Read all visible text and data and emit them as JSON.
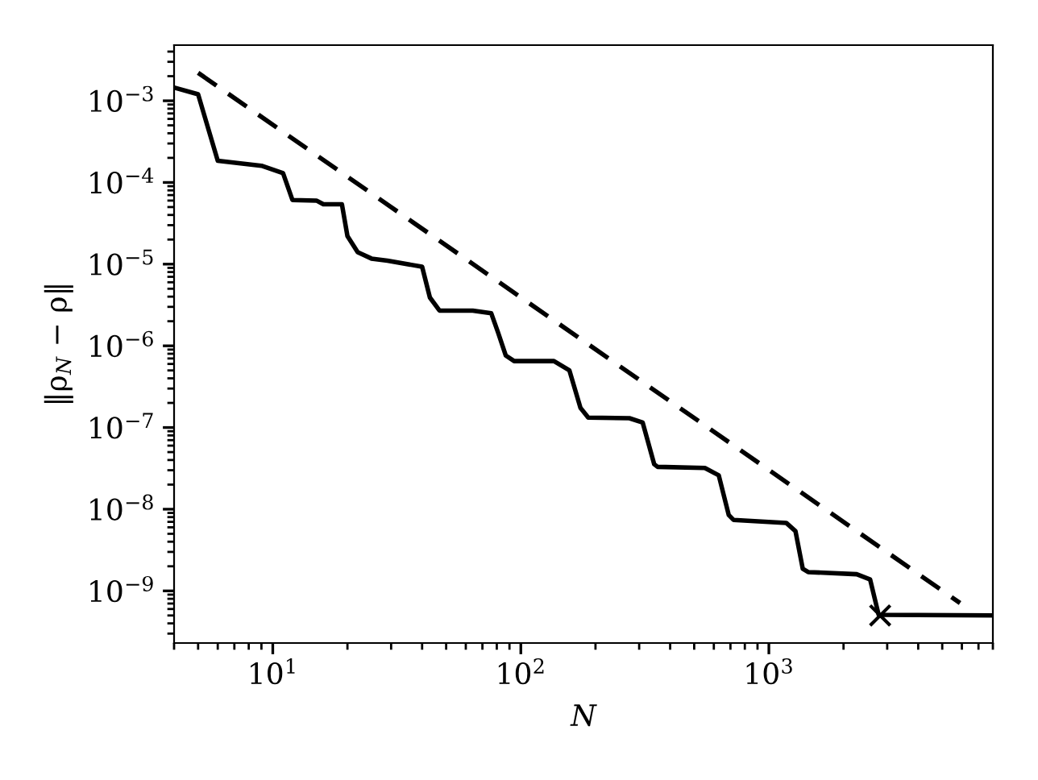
{
  "chart_data": {
    "type": "line",
    "xlabel": "N",
    "ylabel": "‖ρ$_{N}$ − ρ‖",
    "log": "xy",
    "grid": false,
    "legend": false,
    "xlim": [
      4,
      8000
    ],
    "ylim": [
      2.3e-10,
      0.0048
    ],
    "xticks": [
      {
        "value": 10,
        "label": "10$^{1}$"
      },
      {
        "value": 100,
        "label": "10$^{2}$"
      },
      {
        "value": 1000,
        "label": "10$^{3}$"
      }
    ],
    "yticks": [
      {
        "value": 1e-09,
        "label": "10$^{−9}$"
      },
      {
        "value": 1e-08,
        "label": "10$^{−8}$"
      },
      {
        "value": 1e-07,
        "label": "10$^{−7}$"
      },
      {
        "value": 1e-06,
        "label": "10$^{−6}$"
      },
      {
        "value": 1e-05,
        "label": "10$^{−5}$"
      },
      {
        "value": 0.0001,
        "label": "10$^{−4}$"
      },
      {
        "value": 0.001,
        "label": "10$^{−3}$"
      }
    ],
    "series": [
      {
        "color": "#000000",
        "line_style": "dashed",
        "marker": "none",
        "x": [
          5,
          5900
        ],
        "values": [
          0.0022,
          7.1e-10
        ]
      },
      {
        "color": "#000000",
        "line_style": "solid",
        "marker": "none",
        "x": [
          4,
          5,
          6,
          9,
          11,
          12,
          15,
          16,
          19,
          20,
          22,
          25,
          29,
          40,
          43,
          47,
          64,
          76,
          81,
          87,
          94,
          136,
          157,
          174,
          187,
          274,
          310,
          345,
          356,
          552,
          628,
          689,
          720,
          1175,
          1280,
          1370,
          1440,
          2260,
          2560,
          2770,
          8000
        ],
        "values": [
          0.00145,
          0.0012,
          0.000184,
          0.00016,
          0.00013,
          6.1e-05,
          6e-05,
          5.4e-05,
          5.4e-05,
          2.2e-05,
          1.4e-05,
          1.17e-05,
          1.1e-05,
          9.3e-06,
          3.9e-06,
          2.7e-06,
          2.7e-06,
          2.5e-06,
          1.45e-06,
          7.6e-07,
          6.5e-07,
          6.5e-07,
          5e-07,
          1.74e-07,
          1.32e-07,
          1.3e-07,
          1.15e-07,
          3.55e-08,
          3.3e-08,
          3.2e-08,
          2.6e-08,
          8.5e-09,
          7.4e-09,
          6.8e-09,
          5.4e-09,
          1.86e-09,
          1.7e-09,
          1.6e-09,
          1.38e-09,
          5.1e-10,
          5e-10
        ]
      },
      {
        "type": "scatter",
        "color": "#000000",
        "marker": "cross",
        "x": [
          2810
        ],
        "values": [
          5e-10
        ]
      }
    ]
  }
}
